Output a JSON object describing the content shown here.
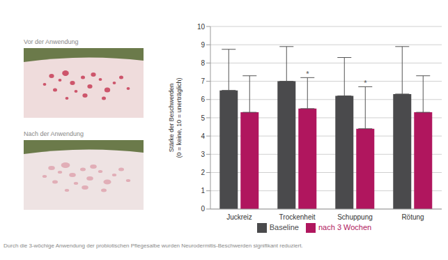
{
  "chart_data": {
    "type": "bar",
    "categories": [
      "Juckreiz",
      "Trockenheit",
      "Schuppung",
      "Rötung"
    ],
    "series": [
      {
        "name": "Baseline",
        "color": "#4a4a4c",
        "values": [
          6.5,
          7.0,
          6.2,
          6.3
        ],
        "errors": [
          2.25,
          1.9,
          2.1,
          2.6
        ]
      },
      {
        "name": "nach 3 Wochen",
        "color": "#b0165e",
        "values": [
          5.3,
          5.5,
          4.4,
          5.3
        ],
        "errors": [
          2.0,
          1.7,
          2.3,
          2.0
        ]
      }
    ],
    "y_label": [
      "Stärke der Beschwerden",
      "(0 = keine, 10 = unerträglich)"
    ],
    "ylim": [
      0,
      10
    ],
    "yticks": [
      0,
      1,
      2,
      3,
      4,
      5,
      6,
      7,
      8,
      9,
      10
    ],
    "grid": true,
    "legend": "bottom",
    "annotations": [
      {
        "category": "Trockenheit",
        "series": "nach 3 Wochen",
        "text": "*"
      },
      {
        "category": "Schuppung",
        "series": "nach 3 Wochen",
        "text": "*"
      }
    ]
  },
  "photos": [
    {
      "label": "Vor der Anwendung"
    },
    {
      "label": "Nach der Anwendung"
    }
  ],
  "caption": "Durch die 3-wöchige Anwendung der probiotischen Pflegesalbe wurden Neurodermitis-Beschwerden signifikant reduziert."
}
